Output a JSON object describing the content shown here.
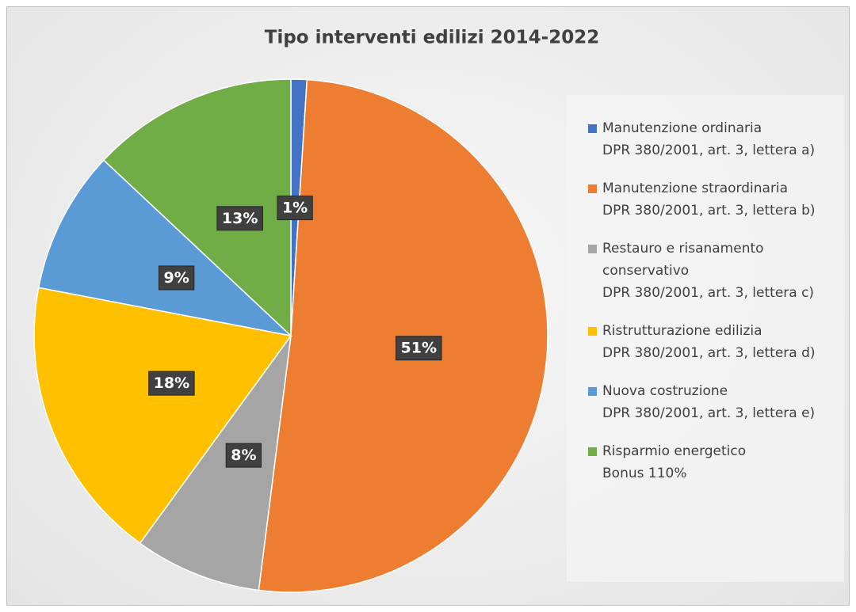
{
  "chart_data": {
    "type": "pie",
    "title": "Tipo interventi edilizi 2014-2022",
    "categories": [
      "Manutenzione ordinaria\nDPR 380/2001, art. 3, lettera a)",
      "Manutenzione straordinaria\nDPR 380/2001, art. 3, lettera b)",
      "Restauro e risanamento\nconservativo\nDPR 380/2001, art. 3, lettera c)",
      "Ristrutturazione edilizia\nDPR 380/2001, art. 3, lettera d)",
      "Nuova costruzione\nDPR 380/2001, art. 3, lettera e)",
      "Risparmio energetico\nBonus 110%"
    ],
    "values": [
      1,
      51,
      8,
      18,
      9,
      13
    ],
    "value_labels": [
      "1%",
      "51%",
      "8%",
      "18%",
      "9%",
      "13%"
    ],
    "colors": [
      "#4472c4",
      "#ed7d31",
      "#a5a5a5",
      "#ffc000",
      "#5b9bd5",
      "#70ad47"
    ],
    "legend": "right"
  }
}
